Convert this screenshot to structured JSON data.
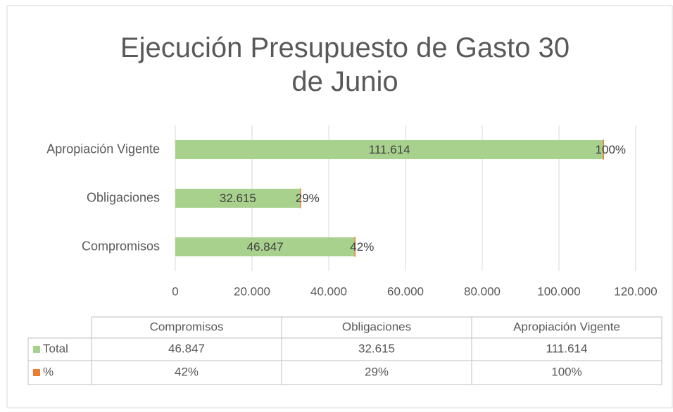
{
  "chart_data": {
    "type": "bar",
    "orientation": "horizontal",
    "stacked": true,
    "title": "Ejecución Presupuesto de Gasto  30 de Junio",
    "categories": [
      "Compromisos",
      "Obligaciones",
      "Apropiación Vigente"
    ],
    "series": [
      {
        "name": "Total",
        "color": "#a9d18e",
        "values": [
          46847,
          32615,
          111614
        ],
        "value_labels": [
          "46.847",
          "32.615",
          "111.614"
        ]
      },
      {
        "name": "%",
        "color": "#ed7d31",
        "values": [
          0.42,
          0.29,
          1
        ],
        "value_labels": [
          "42%",
          "29%",
          "100%"
        ]
      }
    ],
    "xlim": [
      0,
      120000
    ],
    "xticks": [
      0,
      {
        "value": 20000,
        "label": "20.000"
      },
      {
        "value": 40000,
        "label": "40.000"
      },
      {
        "value": 60000,
        "label": "60.000"
      },
      {
        "value": 80000,
        "label": "80.000"
      },
      {
        "value": 100000,
        "label": "100.000"
      },
      {
        "value": 120000,
        "label": "120.000"
      }
    ],
    "grid": true,
    "data_table": true
  }
}
